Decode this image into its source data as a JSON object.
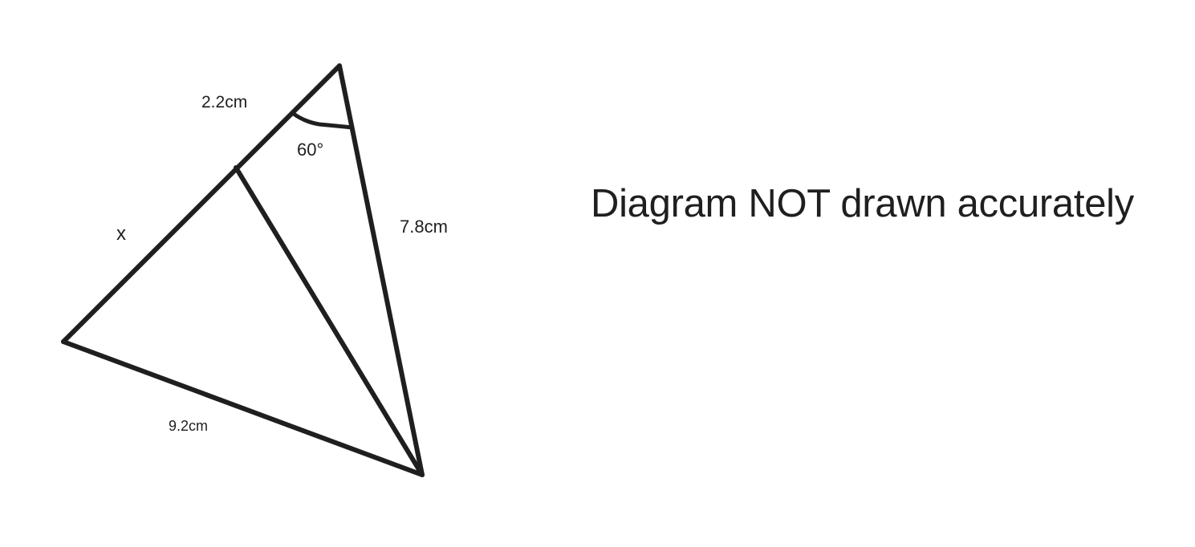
{
  "diagram": {
    "labels": {
      "top_segment": "2.2cm",
      "angle": "60°",
      "right_side": "7.8cm",
      "unknown": "x",
      "bottom_side": "9.2cm"
    },
    "notice": "Diagram NOT drawn accurately",
    "colors": {
      "stroke": "#1f1f1f",
      "background": "#ffffff"
    }
  }
}
